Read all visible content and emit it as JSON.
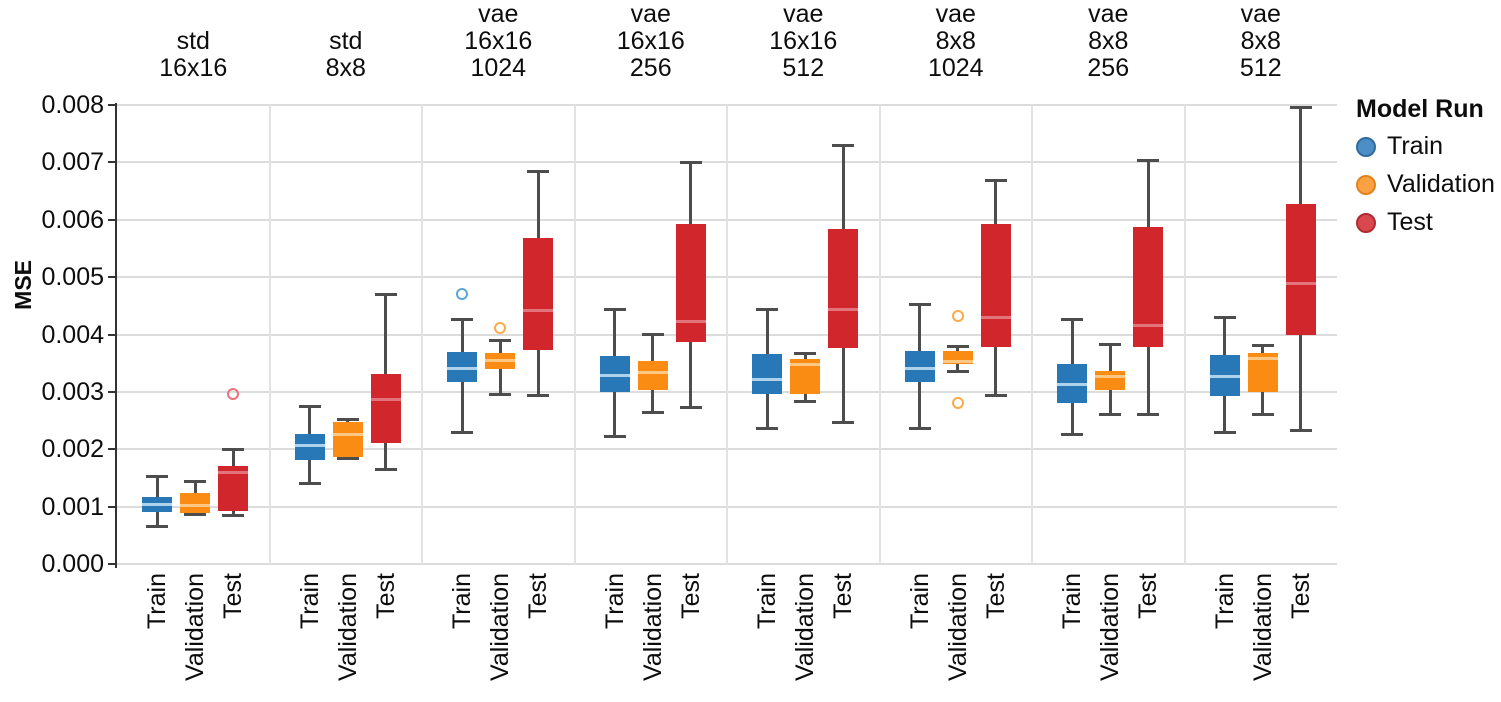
{
  "chart_data": {
    "type": "box",
    "title": "",
    "ylabel": "MSE",
    "ylim": [
      0,
      0.008
    ],
    "ytick_step": 0.001,
    "yticks": [
      "0.000",
      "0.001",
      "0.002",
      "0.003",
      "0.004",
      "0.005",
      "0.006",
      "0.007",
      "0.008"
    ],
    "grid": "horizontal",
    "runs": [
      "Train",
      "Validation",
      "Test"
    ],
    "colors": {
      "whisker": "#4d4d4d",
      "grid": "#dcdcdc",
      "axis": "#333333",
      "Train": {
        "box": "#2878b8",
        "median": "#aed2ec",
        "outlier": "#5da5d8"
      },
      "Validation": {
        "box": "#fb8c13",
        "median": "#ffc784",
        "outlier": "#fdaa48"
      },
      "Test": {
        "box": "#d2262d",
        "median": "#e4747c",
        "outlier": "#ef7078"
      }
    },
    "legend": {
      "title": "Model Run",
      "position": "right",
      "entries": [
        {
          "label": "Train",
          "marker_fill": "#4c8ec5",
          "marker_stroke": "#2f6ca0"
        },
        {
          "label": "Validation",
          "marker_fill": "#fba144",
          "marker_stroke": "#e2821e"
        },
        {
          "label": "Test",
          "marker_fill": "#d9484e",
          "marker_stroke": "#b02a30"
        }
      ]
    },
    "facets": [
      {
        "label_lines": [
          "std",
          "16x16"
        ],
        "boxes": [
          {
            "run": "Train",
            "whislo": 0.00065,
            "q1": 0.00091,
            "med": 0.00104,
            "q3": 0.00116,
            "whishi": 0.00152,
            "outliers": []
          },
          {
            "run": "Validation",
            "whislo": 0.00087,
            "q1": 0.00089,
            "med": 0.00102,
            "q3": 0.00123,
            "whishi": 0.00143,
            "outliers": []
          },
          {
            "run": "Test",
            "whislo": 0.00085,
            "q1": 0.00092,
            "med": 0.0016,
            "q3": 0.0017,
            "whishi": 0.002,
            "outliers": [
              0.00297
            ]
          }
        ]
      },
      {
        "label_lines": [
          "std",
          "8x8"
        ],
        "boxes": [
          {
            "run": "Train",
            "whislo": 0.00141,
            "q1": 0.00181,
            "med": 0.00206,
            "q3": 0.00227,
            "whishi": 0.00274,
            "outliers": []
          },
          {
            "run": "Validation",
            "whislo": 0.00184,
            "q1": 0.00186,
            "med": 0.00225,
            "q3": 0.00247,
            "whishi": 0.00252,
            "outliers": []
          },
          {
            "run": "Test",
            "whislo": 0.00165,
            "q1": 0.0021,
            "med": 0.00286,
            "q3": 0.00332,
            "whishi": 0.0047,
            "outliers": []
          }
        ]
      },
      {
        "label_lines": [
          "vae",
          "16x16",
          "1024"
        ],
        "boxes": [
          {
            "run": "Train",
            "whislo": 0.0023,
            "q1": 0.00317,
            "med": 0.00341,
            "q3": 0.00369,
            "whishi": 0.00426,
            "outliers": [
              0.0047
            ]
          },
          {
            "run": "Validation",
            "whislo": 0.00295,
            "q1": 0.0034,
            "med": 0.00355,
            "q3": 0.00368,
            "whishi": 0.0039,
            "outliers": [
              0.00411
            ]
          },
          {
            "run": "Test",
            "whislo": 0.00293,
            "q1": 0.00373,
            "med": 0.00442,
            "q3": 0.00568,
            "whishi": 0.00684,
            "outliers": []
          }
        ]
      },
      {
        "label_lines": [
          "vae",
          "16x16",
          "256"
        ],
        "boxes": [
          {
            "run": "Train",
            "whislo": 0.00222,
            "q1": 0.00299,
            "med": 0.00328,
            "q3": 0.00363,
            "whishi": 0.00444,
            "outliers": []
          },
          {
            "run": "Validation",
            "whislo": 0.00264,
            "q1": 0.00304,
            "med": 0.00334,
            "q3": 0.00354,
            "whishi": 0.004,
            "outliers": []
          },
          {
            "run": "Test",
            "whislo": 0.00273,
            "q1": 0.00387,
            "med": 0.00422,
            "q3": 0.00593,
            "whishi": 0.007,
            "outliers": []
          }
        ]
      },
      {
        "label_lines": [
          "vae",
          "16x16",
          "512"
        ],
        "boxes": [
          {
            "run": "Train",
            "whislo": 0.00236,
            "q1": 0.00297,
            "med": 0.00321,
            "q3": 0.00366,
            "whishi": 0.00443,
            "outliers": []
          },
          {
            "run": "Validation",
            "whislo": 0.00283,
            "q1": 0.00297,
            "med": 0.00348,
            "q3": 0.00357,
            "whishi": 0.00367,
            "outliers": []
          },
          {
            "run": "Test",
            "whislo": 0.00246,
            "q1": 0.00376,
            "med": 0.00443,
            "q3": 0.00584,
            "whishi": 0.0073,
            "outliers": []
          }
        ]
      },
      {
        "label_lines": [
          "vae",
          "8x8",
          "1024"
        ],
        "boxes": [
          {
            "run": "Train",
            "whislo": 0.00236,
            "q1": 0.00317,
            "med": 0.00341,
            "q3": 0.00371,
            "whishi": 0.00453,
            "outliers": []
          },
          {
            "run": "Validation",
            "whislo": 0.00336,
            "q1": 0.00348,
            "med": 0.00353,
            "q3": 0.00371,
            "whishi": 0.00379,
            "outliers": [
              0.00432,
              0.00281
            ]
          },
          {
            "run": "Test",
            "whislo": 0.00294,
            "q1": 0.00378,
            "med": 0.0043,
            "q3": 0.00592,
            "whishi": 0.00669,
            "outliers": []
          }
        ]
      },
      {
        "label_lines": [
          "vae",
          "8x8",
          "256"
        ],
        "boxes": [
          {
            "run": "Train",
            "whislo": 0.00226,
            "q1": 0.00281,
            "med": 0.00313,
            "q3": 0.00348,
            "whishi": 0.00427,
            "outliers": []
          },
          {
            "run": "Validation",
            "whislo": 0.0026,
            "q1": 0.00303,
            "med": 0.00327,
            "q3": 0.00337,
            "whishi": 0.00382,
            "outliers": []
          },
          {
            "run": "Test",
            "whislo": 0.0026,
            "q1": 0.00379,
            "med": 0.00415,
            "q3": 0.00587,
            "whishi": 0.00704,
            "outliers": []
          }
        ]
      },
      {
        "label_lines": [
          "vae",
          "8x8",
          "512"
        ],
        "boxes": [
          {
            "run": "Train",
            "whislo": 0.00229,
            "q1": 0.00293,
            "med": 0.00327,
            "q3": 0.00365,
            "whishi": 0.00429,
            "outliers": []
          },
          {
            "run": "Validation",
            "whislo": 0.0026,
            "q1": 0.00299,
            "med": 0.00359,
            "q3": 0.00368,
            "whishi": 0.00381,
            "outliers": []
          },
          {
            "run": "Test",
            "whislo": 0.00232,
            "q1": 0.00399,
            "med": 0.00489,
            "q3": 0.00628,
            "whishi": 0.00795,
            "outliers": []
          }
        ]
      }
    ]
  }
}
